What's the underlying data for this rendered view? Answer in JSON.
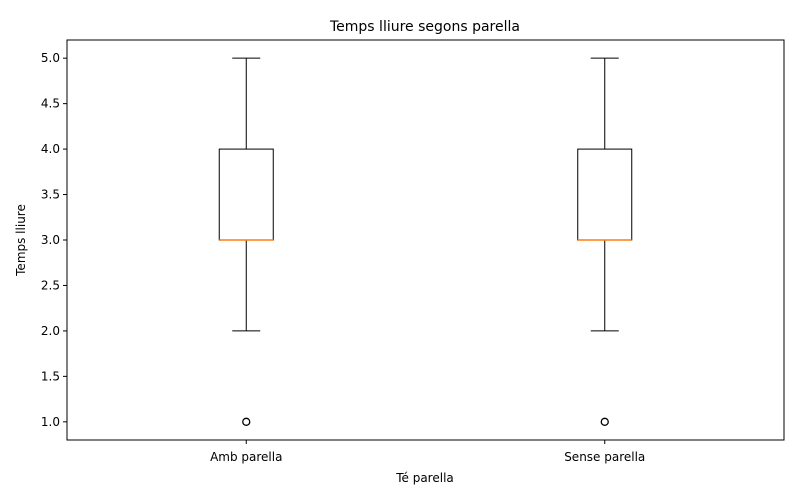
{
  "chart_data": {
    "type": "box",
    "title": "Temps lliure segons parella",
    "xlabel": "Té parella",
    "ylabel": "Temps lliure",
    "ylim": [
      0.8,
      5.2
    ],
    "yticks": [
      "1.0",
      "1.5",
      "2.0",
      "2.5",
      "3.0",
      "3.5",
      "4.0",
      "4.5",
      "5.0"
    ],
    "grid": false,
    "categories": [
      "Amb parella",
      "Sense parella"
    ],
    "boxes": [
      {
        "category": "Amb parella",
        "whisker_low": 2,
        "q1": 3,
        "median": 3,
        "q3": 4,
        "whisker_high": 5,
        "outliers": [
          1
        ]
      },
      {
        "category": "Sense parella",
        "whisker_low": 2,
        "q1": 3,
        "median": 3,
        "q3": 4,
        "whisker_high": 5,
        "outliers": [
          1
        ]
      }
    ],
    "colors": {
      "box": "#000000",
      "median": "#ff7f0e"
    }
  }
}
